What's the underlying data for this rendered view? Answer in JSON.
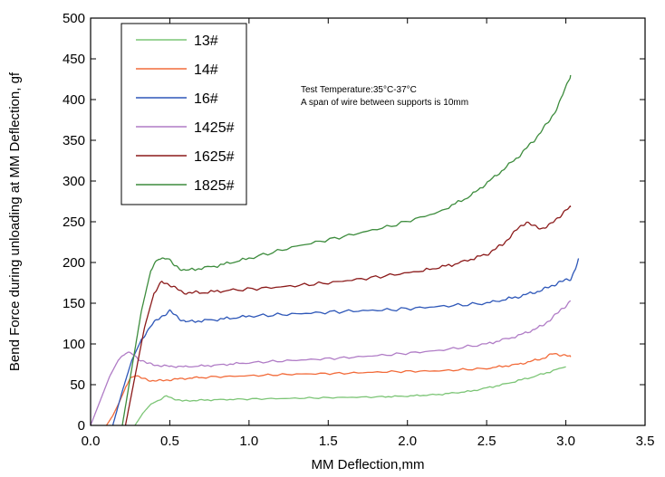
{
  "chart_data": {
    "type": "line",
    "xlabel": "MM Deflection,mm",
    "ylabel": "Bend Force during unloading at MM Deflection, gf",
    "xlim": [
      0.0,
      3.5
    ],
    "ylim": [
      0,
      500
    ],
    "xticks": [
      "0.0",
      "0.5",
      "1.0",
      "1.5",
      "2.0",
      "2.5",
      "3.0",
      "3.5"
    ],
    "yticks": [
      "0",
      "50",
      "100",
      "150",
      "200",
      "250",
      "300",
      "350",
      "400",
      "450",
      "500"
    ],
    "grid": false,
    "legend_position": "top-left",
    "annotations": [
      "Test Temperature:35°C-37°C",
      "A span of wire between supports is 10mm"
    ],
    "series": [
      {
        "name": "13#",
        "color": "#7cc576",
        "x": [
          0.28,
          0.33,
          0.38,
          0.43,
          0.48,
          0.52,
          0.58,
          0.7,
          0.9,
          1.2,
          1.5,
          1.8,
          2.0,
          2.2,
          2.4,
          2.6,
          2.8,
          3.0
        ],
        "y": [
          0,
          15,
          26,
          31,
          36,
          33,
          30,
          31,
          32,
          33,
          34,
          35,
          36,
          38,
          42,
          50,
          60,
          72
        ]
      },
      {
        "name": "14#",
        "color": "#f26b3a",
        "x": [
          0.1,
          0.14,
          0.18,
          0.22,
          0.25,
          0.28,
          0.32,
          0.38,
          0.45,
          0.55,
          0.7,
          1.0,
          1.3,
          1.6,
          1.9,
          2.2,
          2.5,
          2.7,
          2.85,
          2.92,
          3.0,
          3.03
        ],
        "y": [
          0,
          12,
          28,
          46,
          58,
          62,
          58,
          55,
          55,
          57,
          59,
          61,
          63,
          64,
          66,
          67,
          70,
          75,
          82,
          88,
          86,
          84
        ]
      },
      {
        "name": "16#",
        "color": "#2e57b8",
        "x": [
          0.14,
          0.2,
          0.26,
          0.32,
          0.38,
          0.44,
          0.5,
          0.55,
          0.6,
          0.8,
          1.0,
          1.3,
          1.6,
          1.9,
          2.2,
          2.5,
          2.7,
          2.85,
          2.95,
          3.03,
          3.06,
          3.08
        ],
        "y": [
          0,
          42,
          80,
          105,
          122,
          133,
          140,
          133,
          127,
          130,
          134,
          137,
          140,
          142,
          146,
          150,
          158,
          166,
          175,
          180,
          192,
          205
        ]
      },
      {
        "name": "1425#",
        "color": "#b07cc6",
        "x": [
          0.0,
          0.06,
          0.12,
          0.18,
          0.22,
          0.26,
          0.3,
          0.36,
          0.45,
          0.6,
          0.8,
          1.0,
          1.3,
          1.6,
          1.9,
          2.2,
          2.5,
          2.7,
          2.85,
          2.95,
          3.03
        ],
        "y": [
          0,
          30,
          60,
          82,
          89,
          88,
          82,
          76,
          73,
          72,
          74,
          77,
          80,
          83,
          87,
          92,
          100,
          110,
          122,
          138,
          153
        ]
      },
      {
        "name": "1625#",
        "color": "#8b1a1a",
        "x": [
          0.22,
          0.28,
          0.34,
          0.4,
          0.45,
          0.5,
          0.58,
          0.7,
          0.9,
          1.2,
          1.5,
          1.8,
          2.1,
          2.3,
          2.5,
          2.6,
          2.7,
          2.75,
          2.8,
          2.85,
          2.9,
          2.95,
          3.0,
          3.03
        ],
        "y": [
          0,
          60,
          120,
          162,
          176,
          173,
          163,
          163,
          166,
          170,
          175,
          182,
          190,
          198,
          210,
          222,
          242,
          250,
          244,
          242,
          246,
          255,
          264,
          268
        ]
      },
      {
        "name": "1825#",
        "color": "#3d8c3d",
        "x": [
          0.2,
          0.26,
          0.32,
          0.38,
          0.43,
          0.48,
          0.53,
          0.6,
          0.8,
          1.0,
          1.3,
          1.6,
          1.9,
          2.2,
          2.4,
          2.55,
          2.7,
          2.8,
          2.9,
          2.95,
          3.0,
          3.03
        ],
        "y": [
          0,
          70,
          140,
          190,
          205,
          206,
          196,
          190,
          196,
          205,
          220,
          232,
          245,
          262,
          282,
          305,
          330,
          350,
          375,
          392,
          415,
          430
        ]
      }
    ]
  }
}
